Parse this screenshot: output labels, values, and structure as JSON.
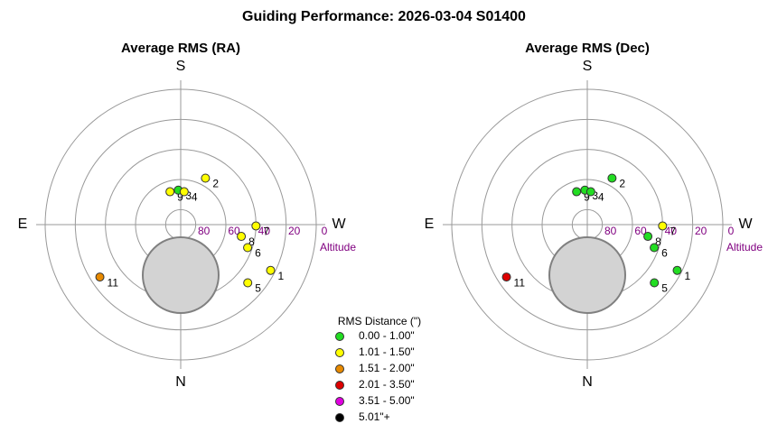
{
  "title": "Guiding Performance: 2026-03-04 S01400",
  "legend": {
    "title": "RMS Distance (\")",
    "items": [
      {
        "label": "0.00 - 1.00\"",
        "color": "#22dd22"
      },
      {
        "label": "1.01 - 1.50\"",
        "color": "#ffff00"
      },
      {
        "label": "1.51 - 2.00\"",
        "color": "#e88a00"
      },
      {
        "label": "2.01 - 3.50\"",
        "color": "#dd0000"
      },
      {
        "label": "3.51 - 5.00\"",
        "color": "#e000e0"
      },
      {
        "label": "5.01\"+",
        "color": "#000000"
      }
    ]
  },
  "chart_data": [
    {
      "type": "polar",
      "title": "Average RMS (RA)",
      "directions": {
        "top": "S",
        "bottom": "N",
        "left": "E",
        "right": "W"
      },
      "rlim": [
        90,
        0
      ],
      "rticks": [
        80,
        60,
        40,
        20,
        0
      ],
      "r_label": "Altitude",
      "labels": [
        "9",
        "3",
        "4",
        "2",
        "7",
        "8",
        "6",
        "1",
        "5",
        "11"
      ],
      "theta": [
        162,
        176,
        186,
        208,
        271,
        281,
        289,
        297,
        311,
        57
      ],
      "r": [
        67,
        67,
        68,
        55,
        40,
        49,
        43,
        23,
        31,
        26
      ],
      "colors": [
        "#ffff00",
        "#22dd22",
        "#ffff00",
        "#ffff00",
        "#ffff00",
        "#ffff00",
        "#ffff00",
        "#ffff00",
        "#ffff00",
        "#e88a00"
      ]
    },
    {
      "type": "polar",
      "title": "Average RMS (Dec)",
      "directions": {
        "top": "S",
        "bottom": "N",
        "left": "E",
        "right": "W"
      },
      "rlim": [
        90,
        0
      ],
      "rticks": [
        80,
        60,
        40,
        20,
        0
      ],
      "r_label": "Altitude",
      "labels": [
        "9",
        "3",
        "4",
        "2",
        "7",
        "8",
        "6",
        "1",
        "5",
        "11"
      ],
      "theta": [
        162,
        176,
        186,
        208,
        271,
        281,
        289,
        297,
        311,
        57
      ],
      "r": [
        67,
        67,
        68,
        55,
        40,
        49,
        43,
        23,
        31,
        26
      ],
      "colors": [
        "#22dd22",
        "#22dd22",
        "#22dd22",
        "#22dd22",
        "#ffff00",
        "#22dd22",
        "#22dd22",
        "#22dd22",
        "#22dd22",
        "#dd0000"
      ]
    }
  ]
}
